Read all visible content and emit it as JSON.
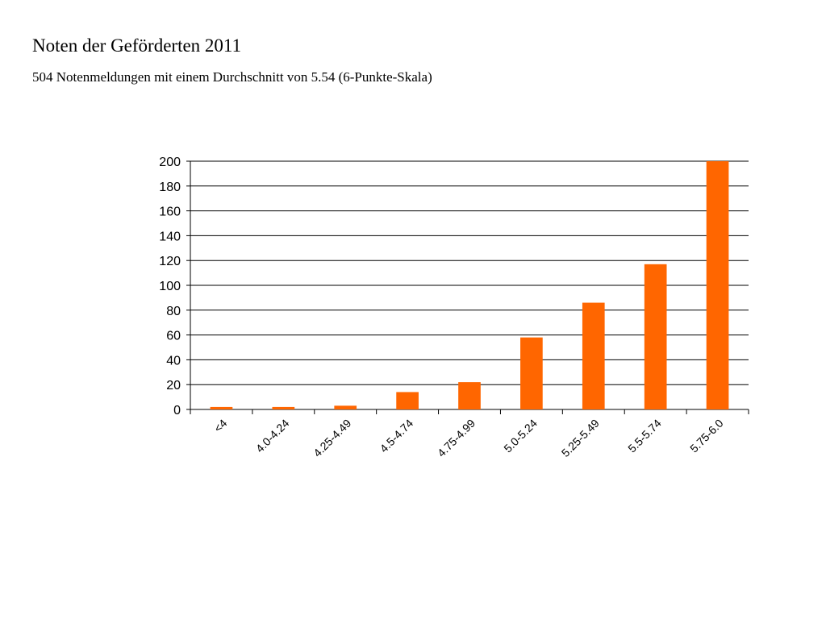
{
  "page": {
    "title": "Noten der Geförderten 2011",
    "subtitle": "504 Notenmeldungen mit einem Durchschnitt von 5.54 (6-Punkte-Skala)"
  },
  "chart_data": {
    "type": "bar",
    "categories": [
      "<4",
      "4.0-4.24",
      "4.25-4.49",
      "4.5-4.74",
      "4.75-4.99",
      "5.0-5.24",
      "5.25-5.49",
      "5.5-5.74",
      "5.75-6.0"
    ],
    "values": [
      2,
      2,
      3,
      14,
      22,
      58,
      86,
      117,
      200
    ],
    "ylim": [
      0,
      200
    ],
    "yticks": [
      0,
      20,
      40,
      60,
      80,
      100,
      120,
      140,
      160,
      180,
      200
    ],
    "grid": true,
    "bar_color": "#ff6600"
  }
}
